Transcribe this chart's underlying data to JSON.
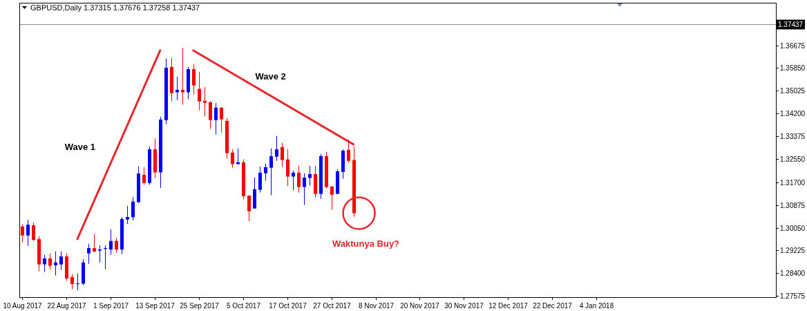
{
  "chart_data": {
    "type": "candlestick",
    "title": "GBPUSD,Daily 1.37315 1.37676 1.37258 1.37437",
    "categories": [
      "10 Aug 2017",
      null,
      null,
      null,
      null,
      null,
      null,
      null,
      "22 Aug 2017",
      null,
      null,
      null,
      null,
      null,
      null,
      null,
      "1 Sep 2017",
      null,
      null,
      null,
      null,
      null,
      null,
      null,
      "13 Sep 2017",
      null,
      null,
      null,
      null,
      null,
      null,
      null,
      "25 Sep 2017",
      null,
      null,
      null,
      null,
      null,
      null,
      null,
      "5 Oct 2017",
      null,
      null,
      null,
      null,
      null,
      null,
      null,
      "17 Oct 2017",
      null,
      null,
      null,
      null,
      null,
      null,
      null,
      "27 Oct 2017",
      null,
      null,
      null,
      null,
      null,
      null,
      null,
      "8 Nov 2017",
      null,
      null,
      null,
      null,
      null,
      null,
      null,
      "20 Nov 2017",
      null,
      null,
      null,
      null,
      null,
      null,
      null,
      "30 Nov 2017",
      null,
      null,
      null,
      null,
      null,
      null,
      null,
      "12 Dec 2017",
      null,
      null,
      null,
      null,
      null,
      null,
      null,
      "22 Dec 2017",
      null,
      null,
      null,
      null,
      null,
      null,
      null,
      "4 Jan 2018",
      null,
      null,
      null,
      null,
      null,
      null,
      null,
      null,
      null,
      null,
      null,
      null,
      null,
      null,
      null,
      null,
      null,
      null,
      null,
      null,
      null,
      null,
      null,
      null,
      null,
      null,
      null,
      null,
      null,
      null,
      null,
      null
    ],
    "ohlc": [
      [
        1.301,
        1.3017,
        1.2952,
        1.2977
      ],
      [
        1.2977,
        1.3034,
        1.2939,
        1.3016
      ],
      [
        1.3014,
        1.3024,
        1.2957,
        1.2961
      ],
      [
        1.2964,
        1.2974,
        1.2847,
        1.2872
      ],
      [
        1.2872,
        1.2907,
        1.2844,
        1.2894
      ],
      [
        1.2894,
        1.2912,
        1.2854,
        1.2867
      ],
      [
        1.2869,
        1.2919,
        1.2832,
        1.2879
      ],
      [
        1.2872,
        1.2919,
        1.2852,
        1.2901
      ],
      [
        1.2901,
        1.2912,
        1.2812,
        1.2821
      ],
      [
        1.2826,
        1.2837,
        1.2782,
        1.2801
      ],
      [
        1.2802,
        1.2839,
        1.2778,
        1.2803
      ],
      [
        1.2802,
        1.2891,
        1.2797,
        1.2879
      ],
      [
        1.2912,
        1.2947,
        1.2874,
        1.2931
      ],
      [
        1.2931,
        1.2982,
        1.2917,
        1.2919
      ],
      [
        1.2922,
        1.2941,
        1.2879,
        1.2926
      ],
      [
        1.2928,
        1.2941,
        1.2854,
        1.2931
      ],
      [
        1.2926,
        1.2999,
        1.2907,
        1.2957
      ],
      [
        1.2957,
        1.2969,
        1.2914,
        1.2926
      ],
      [
        1.2926,
        1.3044,
        1.2909,
        1.3037
      ],
      [
        1.3035,
        1.3085,
        1.3019,
        1.3044
      ],
      [
        1.3043,
        1.3117,
        1.3032,
        1.31
      ],
      [
        1.3098,
        1.3228,
        1.3095,
        1.3202
      ],
      [
        1.3197,
        1.3225,
        1.3161,
        1.3168
      ],
      [
        1.3168,
        1.33,
        1.3161,
        1.329
      ],
      [
        1.329,
        1.333,
        1.3186,
        1.3206
      ],
      [
        1.3206,
        1.3408,
        1.315,
        1.3398
      ],
      [
        1.3396,
        1.3619,
        1.3381,
        1.3586
      ],
      [
        1.3589,
        1.3622,
        1.3464,
        1.3494
      ],
      [
        1.3497,
        1.3554,
        1.3469,
        1.3506
      ],
      [
        1.3506,
        1.3657,
        1.3452,
        1.3497
      ],
      [
        1.3497,
        1.3589,
        1.3472,
        1.3581
      ],
      [
        1.3581,
        1.3599,
        1.3489,
        1.3522
      ],
      [
        1.3509,
        1.3571,
        1.3432,
        1.3464
      ],
      [
        1.3466,
        1.3516,
        1.3409,
        1.3459
      ],
      [
        1.3461,
        1.3464,
        1.3364,
        1.3396
      ],
      [
        1.3396,
        1.3458,
        1.3344,
        1.3441
      ],
      [
        1.3441,
        1.3443,
        1.3351,
        1.3399
      ],
      [
        1.3393,
        1.3403,
        1.3256,
        1.3276
      ],
      [
        1.3278,
        1.329,
        1.3223,
        1.3236
      ],
      [
        1.3236,
        1.3293,
        1.3236,
        1.3243
      ],
      [
        1.3243,
        1.3253,
        1.3108,
        1.312
      ],
      [
        1.3122,
        1.3122,
        1.3028,
        1.3065
      ],
      [
        1.3075,
        1.3187,
        1.3075,
        1.3145
      ],
      [
        1.3143,
        1.3228,
        1.3133,
        1.3205
      ],
      [
        1.3203,
        1.3238,
        1.3176,
        1.3225
      ],
      [
        1.3223,
        1.3293,
        1.3123,
        1.3265
      ],
      [
        1.3263,
        1.3338,
        1.3248,
        1.329
      ],
      [
        1.3298,
        1.3313,
        1.3226,
        1.3251
      ],
      [
        1.3253,
        1.329,
        1.3156,
        1.3191
      ],
      [
        1.3191,
        1.3213,
        1.3141,
        1.3205
      ],
      [
        1.3205,
        1.323,
        1.3133,
        1.3153
      ],
      [
        1.3153,
        1.3203,
        1.3088,
        1.3187
      ],
      [
        1.3186,
        1.323,
        1.3158,
        1.32
      ],
      [
        1.32,
        1.323,
        1.3115,
        1.3128
      ],
      [
        1.3128,
        1.3273,
        1.311,
        1.3265
      ],
      [
        1.3265,
        1.328,
        1.3148,
        1.3153
      ],
      [
        1.3155,
        1.3155,
        1.307,
        1.3125
      ],
      [
        1.3128,
        1.3218,
        1.3128,
        1.321
      ],
      [
        1.3208,
        1.329,
        1.3183,
        1.3285
      ],
      [
        1.3288,
        1.3325,
        1.3241,
        1.3248
      ],
      [
        1.3251,
        1.33,
        1.3045,
        1.3058
      ],
      null,
      null,
      null,
      null,
      null,
      null,
      null,
      null,
      null,
      null,
      null,
      null,
      null,
      null,
      null,
      null,
      null,
      null,
      null,
      null,
      null,
      null,
      null,
      null,
      null,
      null,
      null,
      null,
      null,
      null,
      null,
      null,
      null,
      null,
      null,
      null,
      null,
      null,
      null,
      null,
      null,
      null,
      null,
      null,
      null,
      null,
      null,
      null,
      null,
      null,
      null,
      null,
      null,
      null,
      null,
      null,
      null,
      null,
      null,
      null,
      null,
      null,
      null,
      null,
      null,
      null,
      null,
      null,
      null,
      null,
      null,
      null,
      null,
      null,
      null,
      null
    ],
    "colors": [
      "#ff0000",
      "#0000ff",
      "#ff0000",
      "#ff0000",
      "#0000ff",
      "#ff0000",
      "#0000ff",
      "#0000ff",
      "#ff0000",
      "#ff0000",
      "#0000ff",
      "#0000ff",
      "#0000ff",
      "#ff0000",
      "#0000ff",
      "#0000ff",
      "#0000ff",
      "#ff0000",
      "#0000ff",
      "#0000ff",
      "#0000ff",
      "#0000ff",
      "#ff0000",
      "#0000ff",
      "#ff0000",
      "#0000ff",
      "#0000ff",
      "#ff0000",
      "#0000ff",
      "#ff0000",
      "#0000ff",
      "#ff0000",
      "#ff0000",
      "#ff0000",
      "#ff0000",
      "#0000ff",
      "#ff0000",
      "#ff0000",
      "#ff0000",
      "#0000ff",
      "#ff0000",
      "#ff0000",
      "#0000ff",
      "#0000ff",
      "#0000ff",
      "#0000ff",
      "#0000ff",
      "#ff0000",
      "#ff0000",
      "#0000ff",
      "#ff0000",
      "#0000ff",
      "#0000ff",
      "#ff0000",
      "#0000ff",
      "#ff0000",
      "#ff0000",
      "#0000ff",
      "#0000ff",
      "#ff0000",
      "#ff0000",
      null,
      null,
      null,
      null,
      null,
      null,
      null,
      null,
      null,
      null,
      null,
      null,
      null,
      null,
      null,
      null,
      null,
      null,
      null,
      null,
      null,
      null,
      null,
      null,
      null,
      null,
      null,
      null,
      null,
      null,
      null,
      null,
      null,
      null,
      null,
      null,
      null,
      null,
      null,
      null,
      null,
      null,
      null,
      null,
      null,
      null,
      null,
      null,
      null,
      null,
      null,
      null,
      null,
      null,
      null,
      null,
      null,
      null,
      null,
      null,
      null,
      null,
      null,
      null,
      null,
      null,
      null,
      null,
      null,
      null,
      null,
      null,
      null,
      null,
      null,
      null
    ],
    "series": [
      {
        "type": "line",
        "name": "Wave 1",
        "color": "#e8262b",
        "values": [
          null,
          null,
          null,
          null,
          null,
          null,
          null,
          null,
          null,
          null,
          1.2964,
          null,
          null,
          null,
          null,
          null,
          null,
          null,
          null,
          null,
          null,
          null,
          null,
          null,
          null,
          1.3649,
          null,
          null,
          null,
          null,
          null,
          null,
          null,
          null,
          null,
          null,
          null,
          null,
          null,
          null,
          null,
          null,
          null,
          null,
          null,
          null,
          null,
          null,
          null,
          null,
          null,
          null,
          null,
          null,
          null,
          null,
          null,
          null,
          null,
          null,
          null,
          null,
          null,
          null,
          null,
          null,
          null,
          null,
          null,
          null,
          null,
          null,
          null,
          null,
          null,
          null,
          null,
          null,
          null,
          null,
          null,
          null,
          null,
          null,
          null,
          null,
          null,
          null,
          null,
          null,
          null,
          null,
          null,
          null,
          null,
          null,
          null,
          null,
          null,
          null,
          null,
          null,
          null,
          null,
          null,
          null,
          null,
          null,
          null,
          null,
          null,
          null,
          null,
          null,
          null,
          null,
          null,
          null,
          null,
          null,
          null,
          null,
          null,
          null,
          null,
          null,
          null,
          null,
          null,
          null,
          null,
          null,
          null,
          null,
          null,
          null,
          null
        ]
      },
      {
        "type": "line",
        "name": "Wave 2",
        "color": "#e8262b",
        "values": [
          null,
          null,
          null,
          null,
          null,
          null,
          null,
          null,
          null,
          null,
          null,
          null,
          null,
          null,
          null,
          null,
          null,
          null,
          null,
          null,
          null,
          null,
          null,
          null,
          null,
          null,
          null,
          null,
          null,
          null,
          null,
          1.3649,
          null,
          null,
          null,
          null,
          null,
          null,
          null,
          null,
          null,
          null,
          null,
          null,
          null,
          null,
          null,
          null,
          null,
          null,
          null,
          null,
          null,
          null,
          null,
          null,
          null,
          null,
          null,
          null,
          1.3308,
          null,
          null,
          null,
          null,
          null,
          null,
          null,
          null,
          null,
          null,
          null,
          null,
          null,
          null,
          null,
          null,
          null,
          null,
          null,
          null,
          null,
          null,
          null,
          null,
          null,
          null,
          null,
          null,
          null,
          null,
          null,
          null,
          null,
          null,
          null,
          null,
          null,
          null,
          null,
          null,
          null,
          null,
          null,
          null,
          null,
          null,
          null,
          null,
          null,
          null,
          null,
          null,
          null,
          null,
          null,
          null,
          null,
          null,
          null,
          null,
          null,
          null,
          null,
          null,
          null,
          null,
          null,
          null,
          null,
          null,
          null,
          null,
          null,
          null,
          null,
          null
        ]
      }
    ],
    "ylim": [
      1.2753,
      1.3822
    ],
    "yticks": [
      1.27575,
      {
        "value": 1.284,
        "label": "1.28400"
      },
      1.29225,
      {
        "value": 1.3005,
        "label": "1.30050"
      },
      1.30875,
      {
        "value": 1.317,
        "label": "1.31700"
      },
      {
        "value": 1.3255,
        "label": "1.32550"
      },
      1.33375,
      {
        "value": 1.342,
        "label": "1.34200"
      },
      1.35025,
      {
        "value": 1.3585,
        "label": "1.35850"
      },
      1.36675
    ],
    "ref_lines": [
      {
        "axis": "y",
        "value": 1.37437,
        "label": "1.37437",
        "color": "#8494a4"
      }
    ],
    "annotations": [
      "Waktunya Buy?"
    ]
  }
}
